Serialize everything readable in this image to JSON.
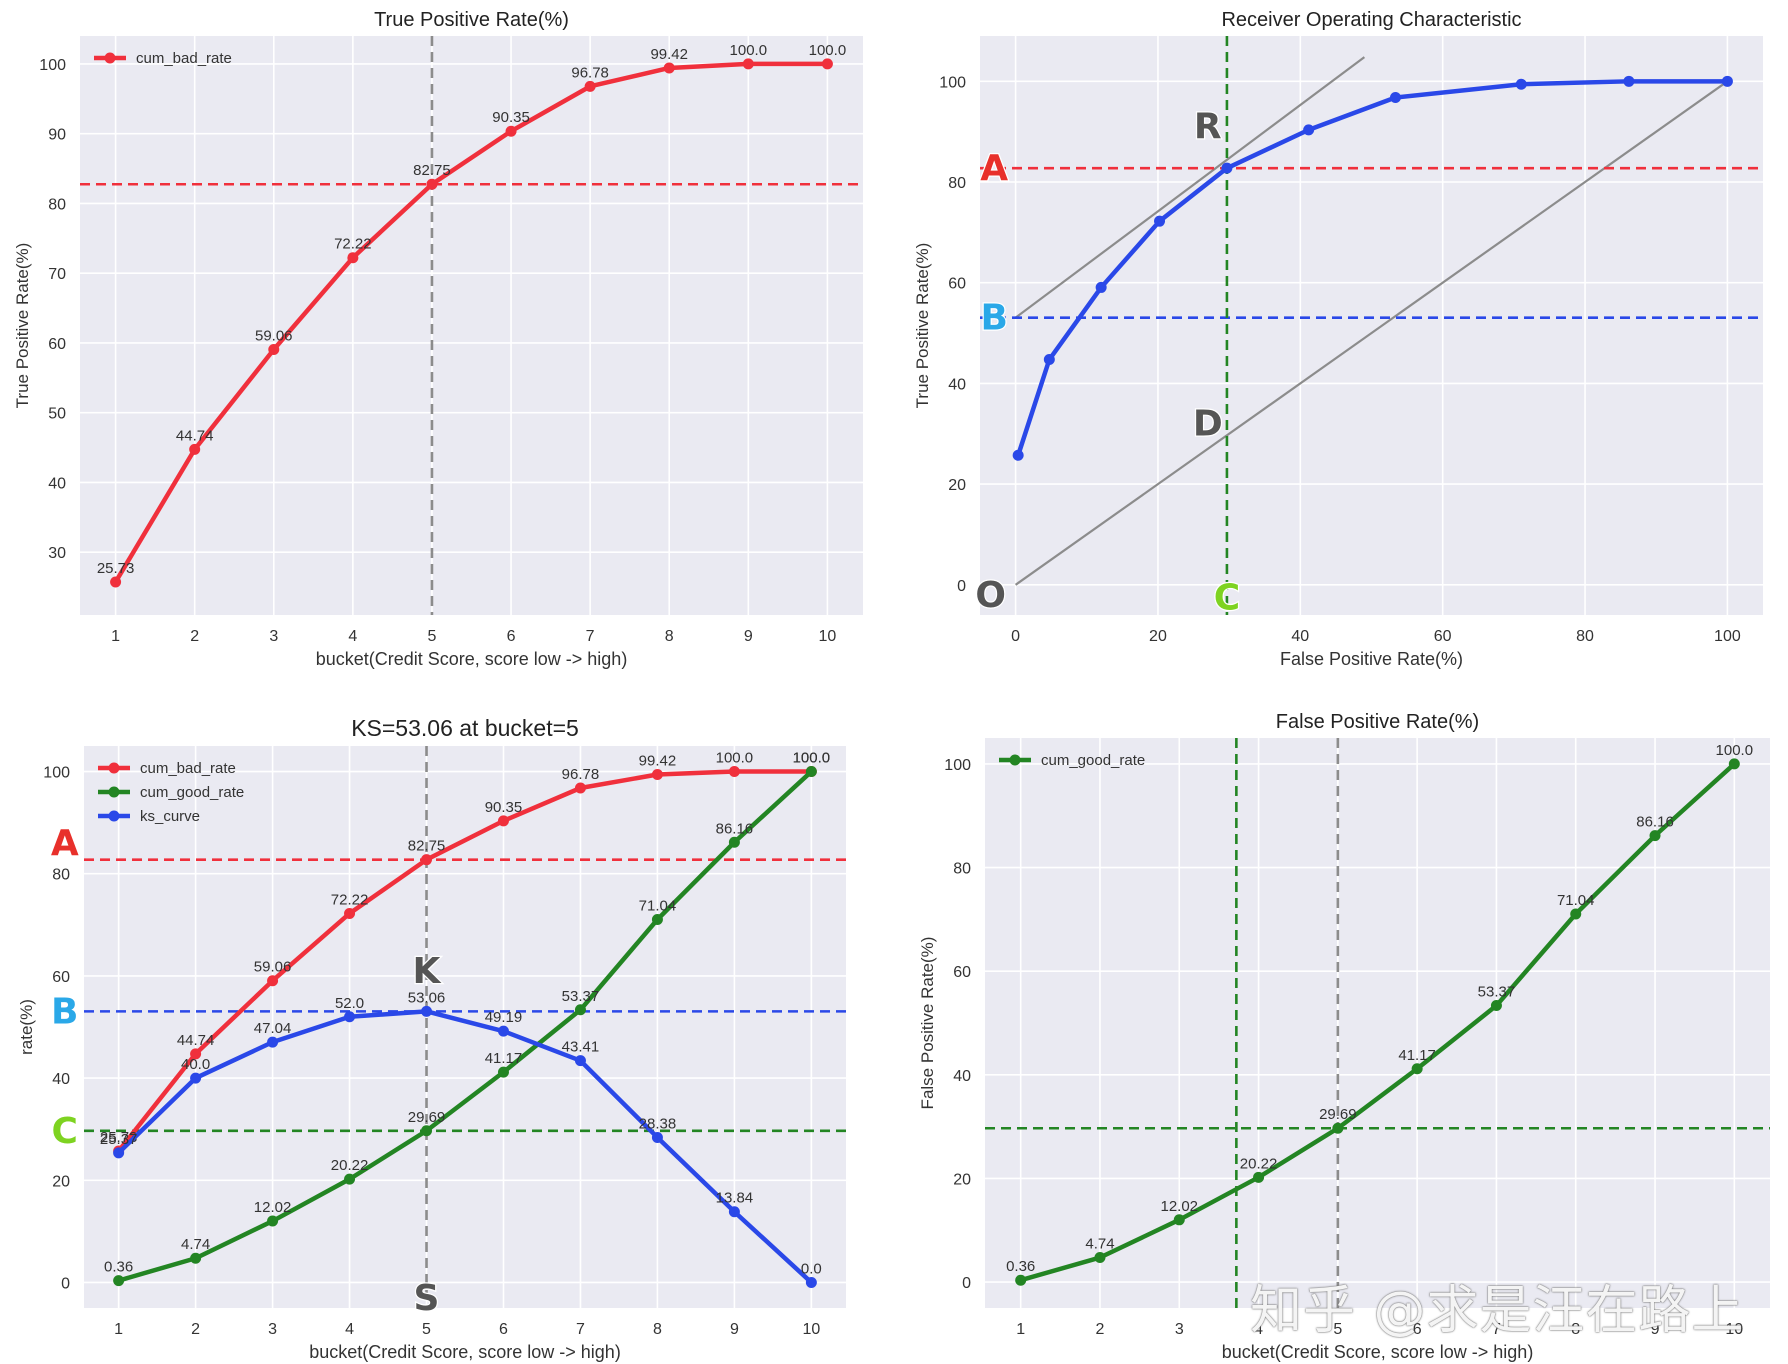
{
  "colors": {
    "red": "#f0303c",
    "green": "#238523",
    "blue": "#2a48e8",
    "gray_dash": "#8c8c8c",
    "panel_bg": "#eaeaf2",
    "grid": "#ffffff",
    "marker_A": "#e8302b",
    "marker_B": "#2aa8e8",
    "marker_C": "#7ed321",
    "marker_dark": "#555555"
  },
  "watermark": "知乎 @求是汪在路上",
  "chart_data": [
    {
      "id": "tpr",
      "type": "line",
      "title": "True Positive Rate(%)",
      "xlabel": "bucket(Credit Score, score low -> high)",
      "ylabel": "True Positive Rate(%)",
      "x": [
        1,
        2,
        3,
        4,
        5,
        6,
        7,
        8,
        9,
        10
      ],
      "xlim": [
        0.55,
        10.45
      ],
      "ylim": [
        21,
        104
      ],
      "xticks": [
        1,
        2,
        3,
        4,
        5,
        6,
        7,
        8,
        9,
        10
      ],
      "yticks": [
        30,
        40,
        50,
        60,
        70,
        80,
        90,
        100
      ],
      "series": [
        {
          "name": "cum_bad_rate",
          "color": "red",
          "values": [
            25.73,
            44.74,
            59.06,
            72.22,
            82.75,
            90.35,
            96.78,
            99.42,
            100.0,
            100.0
          ],
          "labels": [
            "25.73",
            "44.74",
            "59.06",
            "72.22",
            "82.75",
            "90.35",
            "96.78",
            "99.42",
            "100.0",
            "100.0"
          ]
        }
      ],
      "legend": [
        "cum_bad_rate"
      ],
      "legend_position": "top-left",
      "hlines": [
        {
          "y": 82.75,
          "color": "red"
        }
      ],
      "vlines": [
        {
          "x": 5,
          "color": "gray_dash"
        }
      ],
      "markers": []
    },
    {
      "id": "roc",
      "type": "line",
      "title": "Receiver Operating Characteristic",
      "xlabel": "False Positive Rate(%)",
      "ylabel": "True Positive Rate(%)",
      "xlim": [
        -5,
        105
      ],
      "ylim": [
        -6,
        109
      ],
      "xticks": [
        0,
        20,
        40,
        60,
        80,
        100
      ],
      "yticks": [
        0,
        20,
        40,
        60,
        80,
        100
      ],
      "series": [
        {
          "name": "roc_curve",
          "color": "blue",
          "x": [
            0.36,
            4.74,
            12.02,
            20.22,
            29.69,
            41.17,
            53.37,
            71.04,
            86.16,
            100.0
          ],
          "values": [
            25.73,
            44.74,
            59.06,
            72.22,
            82.75,
            90.35,
            96.78,
            99.42,
            100.0,
            100.0
          ]
        }
      ],
      "lines": [
        {
          "x": [
            0,
            100
          ],
          "y": [
            0,
            100
          ],
          "color": "gray_dash"
        },
        {
          "x": [
            0,
            49
          ],
          "y": [
            53.06,
            104.8
          ],
          "color": "gray_dash"
        }
      ],
      "hlines": [
        {
          "y": 82.75,
          "color": "red"
        },
        {
          "y": 53.06,
          "color": "blue"
        }
      ],
      "vlines": [
        {
          "x": 29.69,
          "color": "green"
        }
      ],
      "markers": [
        {
          "text": "A",
          "color": "marker_A",
          "x": -3,
          "y": 82.75
        },
        {
          "text": "B",
          "color": "marker_B",
          "x": -3,
          "y": 53.06
        },
        {
          "text": "R",
          "color": "marker_dark",
          "x": 27,
          "y": 91
        },
        {
          "text": "D",
          "color": "marker_dark",
          "x": 27,
          "y": 32
        },
        {
          "text": "O",
          "color": "marker_dark",
          "x": -3.5,
          "y": -2
        },
        {
          "text": "C",
          "color": "marker_C",
          "x": 29.69,
          "y": -2.5
        }
      ]
    },
    {
      "id": "ks",
      "type": "line",
      "title": "KS=53.06 at bucket=5",
      "xlabel": "bucket(Credit Score, score low -> high)",
      "ylabel": "rate(%)",
      "x": [
        1,
        2,
        3,
        4,
        5,
        6,
        7,
        8,
        9,
        10
      ],
      "xlim": [
        0.55,
        10.45
      ],
      "ylim": [
        -5,
        105
      ],
      "xticks": [
        1,
        2,
        3,
        4,
        5,
        6,
        7,
        8,
        9,
        10
      ],
      "yticks": [
        0,
        20,
        40,
        60,
        80,
        100
      ],
      "series": [
        {
          "name": "cum_bad_rate",
          "color": "red",
          "values": [
            25.73,
            44.74,
            59.06,
            72.22,
            82.75,
            90.35,
            96.78,
            99.42,
            100.0,
            100.0
          ],
          "labels": [
            "25.73",
            "44.74",
            "59.06",
            "72.22",
            "82.75",
            "90.35",
            "96.78",
            "99.42",
            "100.0",
            "100.0"
          ]
        },
        {
          "name": "cum_good_rate",
          "color": "green",
          "values": [
            0.36,
            4.74,
            12.02,
            20.22,
            29.69,
            41.17,
            53.37,
            71.04,
            86.16,
            100.0
          ],
          "labels": [
            "0.36",
            "4.74",
            "12.02",
            "20.22",
            "29.69",
            "41.17",
            "53.37",
            "71.04",
            "86.16",
            "100.0"
          ]
        },
        {
          "name": "ks_curve",
          "color": "blue",
          "values": [
            25.37,
            40.0,
            47.04,
            52.0,
            53.06,
            49.19,
            43.41,
            28.38,
            13.84,
            0.0
          ],
          "labels": [
            "25.37",
            "40.0",
            "47.04",
            "52.0",
            "53.06",
            "49.19",
            "43.41",
            "28.38",
            "13.84",
            "0.0"
          ]
        }
      ],
      "legend": [
        "cum_bad_rate",
        "cum_good_rate",
        "ks_curve"
      ],
      "legend_position": "top-left",
      "hlines": [
        {
          "y": 82.75,
          "color": "red"
        },
        {
          "y": 53.06,
          "color": "blue"
        },
        {
          "y": 29.69,
          "color": "green"
        }
      ],
      "vlines": [
        {
          "x": 5,
          "color": "gray_dash"
        }
      ],
      "markers": [
        {
          "text": "A",
          "color": "marker_A",
          "x": 0.3,
          "y": 86
        },
        {
          "text": "B",
          "color": "marker_B",
          "x": 0.3,
          "y": 53.06
        },
        {
          "text": "C",
          "color": "marker_C",
          "x": 0.3,
          "y": 29.69
        },
        {
          "text": "K",
          "color": "marker_dark",
          "x": 5,
          "y": 61
        },
        {
          "text": "S",
          "color": "marker_dark",
          "x": 5,
          "y": -3
        }
      ]
    },
    {
      "id": "fpr",
      "type": "line",
      "title": "False Positive Rate(%)",
      "xlabel": "bucket(Credit Score, score low -> high)",
      "ylabel": "False Positive Rate(%)",
      "x": [
        1,
        2,
        3,
        4,
        5,
        6,
        7,
        8,
        9,
        10
      ],
      "xlim": [
        0.55,
        10.45
      ],
      "ylim": [
        -5,
        105
      ],
      "xticks": [
        1,
        2,
        3,
        4,
        5,
        6,
        7,
        8,
        9,
        10
      ],
      "yticks": [
        0,
        20,
        40,
        60,
        80,
        100
      ],
      "series": [
        {
          "name": "cum_good_rate",
          "color": "green",
          "values": [
            0.36,
            4.74,
            12.02,
            20.22,
            29.69,
            41.17,
            53.37,
            71.04,
            86.16,
            100.0
          ],
          "labels": [
            "0.36",
            "4.74",
            "12.02",
            "20.22",
            "29.69",
            "41.17",
            "53.37",
            "71.04",
            "86.16",
            "100.0"
          ]
        }
      ],
      "legend": [
        "cum_good_rate"
      ],
      "legend_position": "top-left",
      "hlines": [
        {
          "y": 29.69,
          "color": "green"
        }
      ],
      "vlines": [
        {
          "x": 3.72,
          "color": "green"
        },
        {
          "x": 5,
          "color": "gray_dash"
        }
      ],
      "markers": []
    }
  ]
}
